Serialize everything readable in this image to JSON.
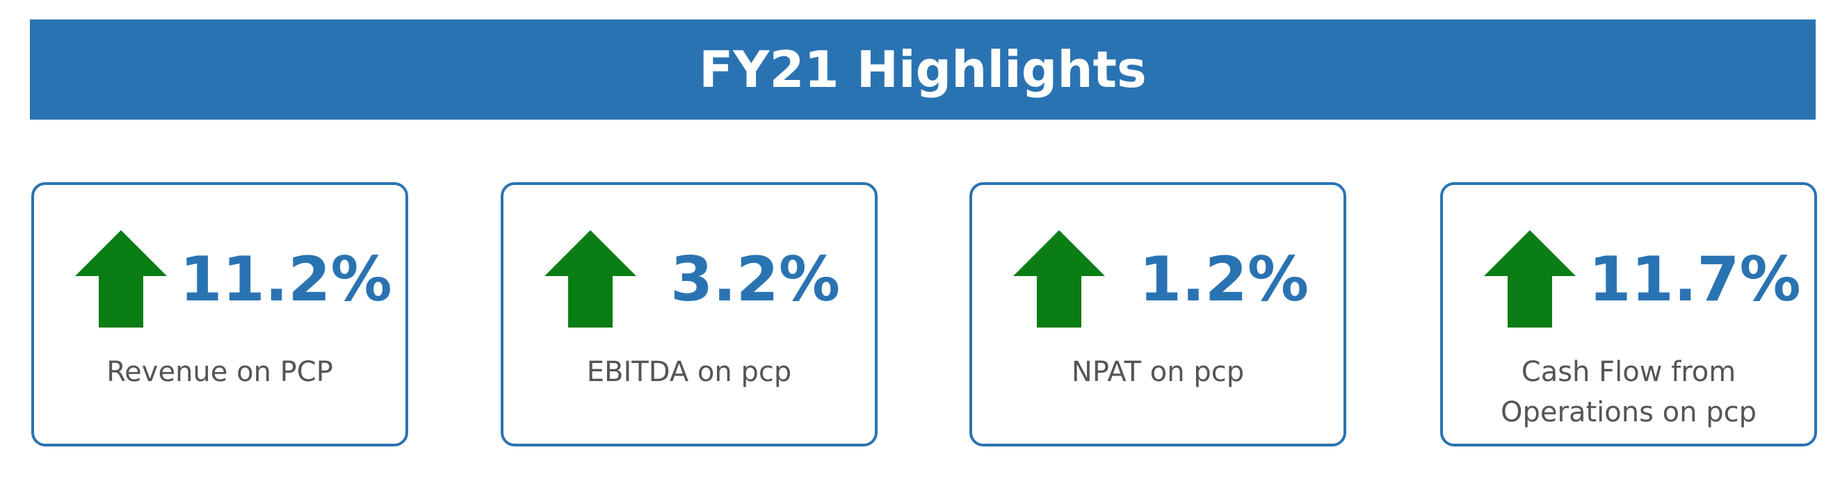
{
  "header": {
    "title": "FY21 Highlights"
  },
  "colors": {
    "banner": "#2a73b2",
    "value_text": "#2a73b2",
    "arrow": "#0a7d14",
    "label_text": "#555555"
  },
  "cards": [
    {
      "icon": "up-arrow-icon",
      "value": "11.2%",
      "label": "Revenue on PCP"
    },
    {
      "icon": "up-arrow-icon",
      "value": "3.2%",
      "label": "EBITDA on pcp"
    },
    {
      "icon": "up-arrow-icon",
      "value": "1.2%",
      "label": "NPAT on pcp"
    },
    {
      "icon": "up-arrow-icon",
      "value": "11.7%",
      "label": "Cash Flow from Operations on pcp"
    }
  ]
}
